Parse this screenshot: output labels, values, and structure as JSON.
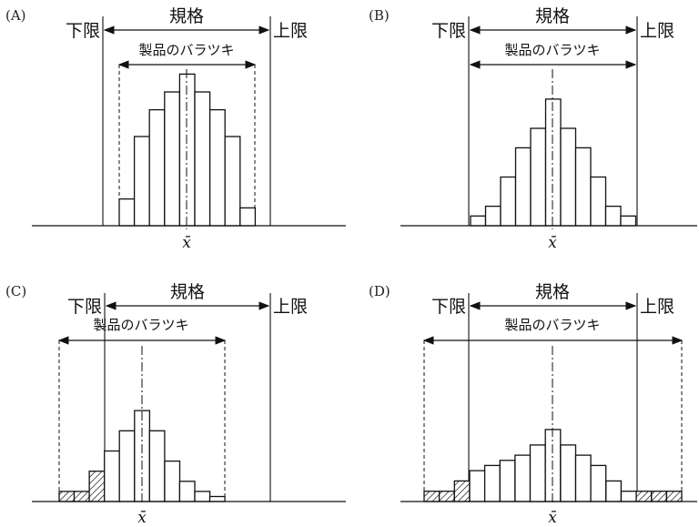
{
  "labels": {
    "lower_limit": "下限",
    "upper_limit": "上限",
    "spec": "規格",
    "variation": "製品のバラツキ",
    "mean": "x̄"
  },
  "panels": [
    {
      "id": "A",
      "label": "(A)",
      "bars": [
        3,
        10,
        13,
        15,
        17,
        15,
        13,
        10,
        2
      ],
      "out_left": 0,
      "out_right": 0
    },
    {
      "id": "B",
      "label": "(B)",
      "bars": [
        1,
        2,
        5,
        8,
        10,
        13,
        10,
        8,
        5,
        2,
        1
      ],
      "out_left": 0,
      "out_right": 0
    },
    {
      "id": "C",
      "label": "(C)",
      "bars": [
        1,
        1,
        3,
        5,
        7,
        9,
        7,
        4,
        2,
        1,
        0.5
      ],
      "out_left": 3,
      "out_right": 0
    },
    {
      "id": "D",
      "label": "(D)",
      "bars": [
        1,
        1,
        2,
        3,
        3.5,
        4,
        4.5,
        5.5,
        7,
        5.5,
        4.5,
        3.5,
        2,
        1,
        1,
        1,
        1
      ],
      "out_left": 3,
      "out_right": 3
    }
  ]
}
